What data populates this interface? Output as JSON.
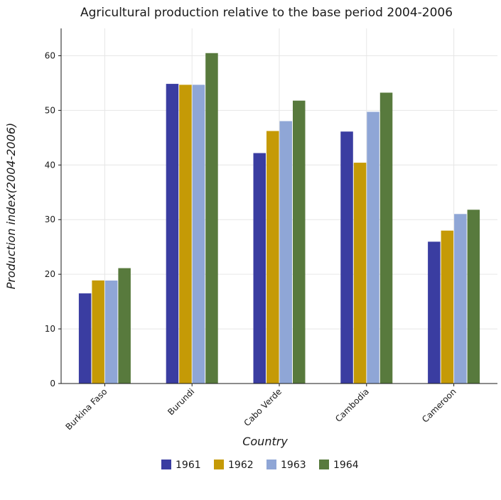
{
  "chart_data": {
    "type": "bar",
    "title": "Agricultural production relative to the base period 2004-2006",
    "xlabel": "Country",
    "ylabel": "Production index(2004-2006)",
    "categories": [
      "Burkina Faso",
      "Burundi",
      "Cabo Verde",
      "Cambodia",
      "Cameroon"
    ],
    "series": [
      {
        "name": "1961",
        "color": "#3a3da1",
        "values": [
          16.5,
          54.85,
          42.18,
          46.12,
          25.96
        ]
      },
      {
        "name": "1962",
        "color": "#c59a06",
        "values": [
          18.87,
          54.68,
          46.22,
          40.42,
          27.99
        ]
      },
      {
        "name": "1963",
        "color": "#8fa6d6",
        "values": [
          18.85,
          54.68,
          48.03,
          49.73,
          31.03
        ]
      },
      {
        "name": "1964",
        "color": "#587a3d",
        "values": [
          21.12,
          60.48,
          51.78,
          53.24,
          31.81
        ]
      }
    ],
    "ylim": [
      0,
      65
    ],
    "yticks": [
      0,
      10,
      20,
      30,
      40,
      50,
      60
    ],
    "grid": true,
    "legend": "bottom-center"
  }
}
